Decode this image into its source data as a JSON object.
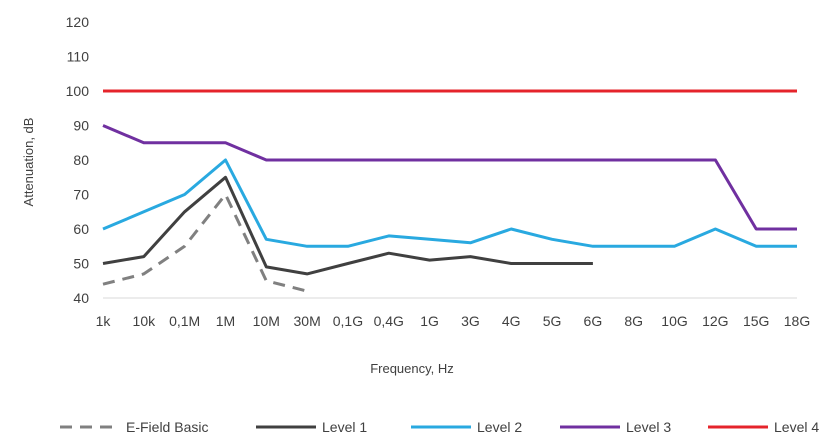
{
  "chart_data": {
    "type": "line",
    "title": "",
    "xlabel": "Frequency,  Hz",
    "ylabel": "Attenuation, dB",
    "categories": [
      "1k",
      "10k",
      "0,1M",
      "1M",
      "10M",
      "30M",
      "0,1G",
      "0,4G",
      "1G",
      "3G",
      "4G",
      "5G",
      "6G",
      "8G",
      "10G",
      "12G",
      "15G",
      "18G"
    ],
    "ylim": [
      40,
      120
    ],
    "yticks": [
      40,
      50,
      60,
      70,
      80,
      90,
      100,
      110,
      120
    ],
    "grid": false,
    "legend_position": "bottom",
    "series": [
      {
        "name": "E-Field Basic",
        "color": "#808080",
        "dash": true,
        "values": [
          44,
          47,
          55,
          70,
          45,
          42,
          null,
          null,
          null,
          null,
          null,
          null,
          null,
          null,
          null,
          null,
          null,
          null
        ]
      },
      {
        "name": "Level 1",
        "color": "#404040",
        "dash": false,
        "values": [
          50,
          52,
          65,
          75,
          49,
          47,
          50,
          53,
          51,
          52,
          50,
          50,
          50,
          null,
          null,
          null,
          null,
          null
        ]
      },
      {
        "name": "Level 2",
        "color": "#29a9e0",
        "dash": false,
        "values": [
          60,
          65,
          70,
          80,
          57,
          55,
          55,
          58,
          57,
          56,
          60,
          57,
          55,
          55,
          55,
          60,
          55,
          55
        ]
      },
      {
        "name": "Level 3",
        "color": "#7030a0",
        "dash": false,
        "values": [
          90,
          85,
          85,
          85,
          80,
          80,
          80,
          80,
          80,
          80,
          80,
          80,
          80,
          80,
          80,
          80,
          60,
          60
        ]
      },
      {
        "name": "Level 4",
        "color": "#e5242b",
        "dash": false,
        "values": [
          100,
          100,
          100,
          100,
          100,
          100,
          100,
          100,
          100,
          100,
          100,
          100,
          100,
          100,
          100,
          100,
          100,
          100
        ]
      }
    ]
  }
}
